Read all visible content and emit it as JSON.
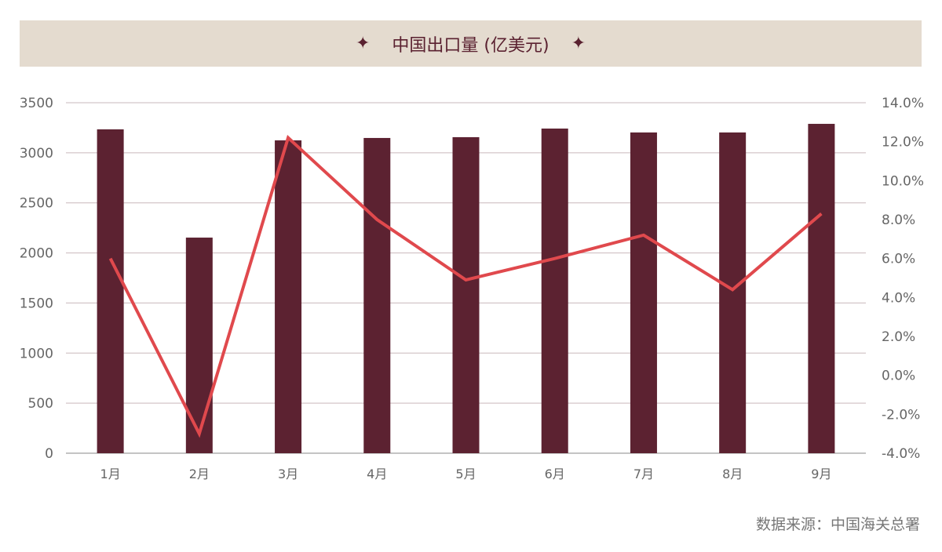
{
  "chart_data": {
    "type": "bar+line",
    "title": "中国出口量 (亿美元)",
    "categories": [
      "1月",
      "2月",
      "3月",
      "4月",
      "5月",
      "6月",
      "7月",
      "8月",
      "9月"
    ],
    "series": [
      {
        "type": "bar",
        "axis": "left",
        "values": [
          3234,
          2153,
          3124,
          3148,
          3156,
          3242,
          3203,
          3203,
          3289
        ],
        "color": "#5c2231"
      },
      {
        "type": "line",
        "axis": "right",
        "values": [
          6.0,
          -3.0,
          12.2,
          8.0,
          4.9,
          6.0,
          7.2,
          4.4,
          8.3
        ],
        "color": "#e0494d"
      }
    ],
    "left_axis": {
      "ylim": [
        0,
        3500
      ],
      "ticks": [
        "0",
        "500",
        "1000",
        "1500",
        "2000",
        "2500",
        "3000",
        "3500"
      ]
    },
    "right_axis": {
      "ylim": [
        -4,
        14
      ],
      "ticks": [
        "-4.0%",
        "-2.0%",
        "0.0%",
        "2.0%",
        "4.0%",
        "6.0%",
        "8.0%",
        "10.0%",
        "12.0%",
        "14.0%"
      ]
    },
    "grid": true,
    "title_decoration": "✦"
  },
  "source": "数据来源：中国海关总署"
}
